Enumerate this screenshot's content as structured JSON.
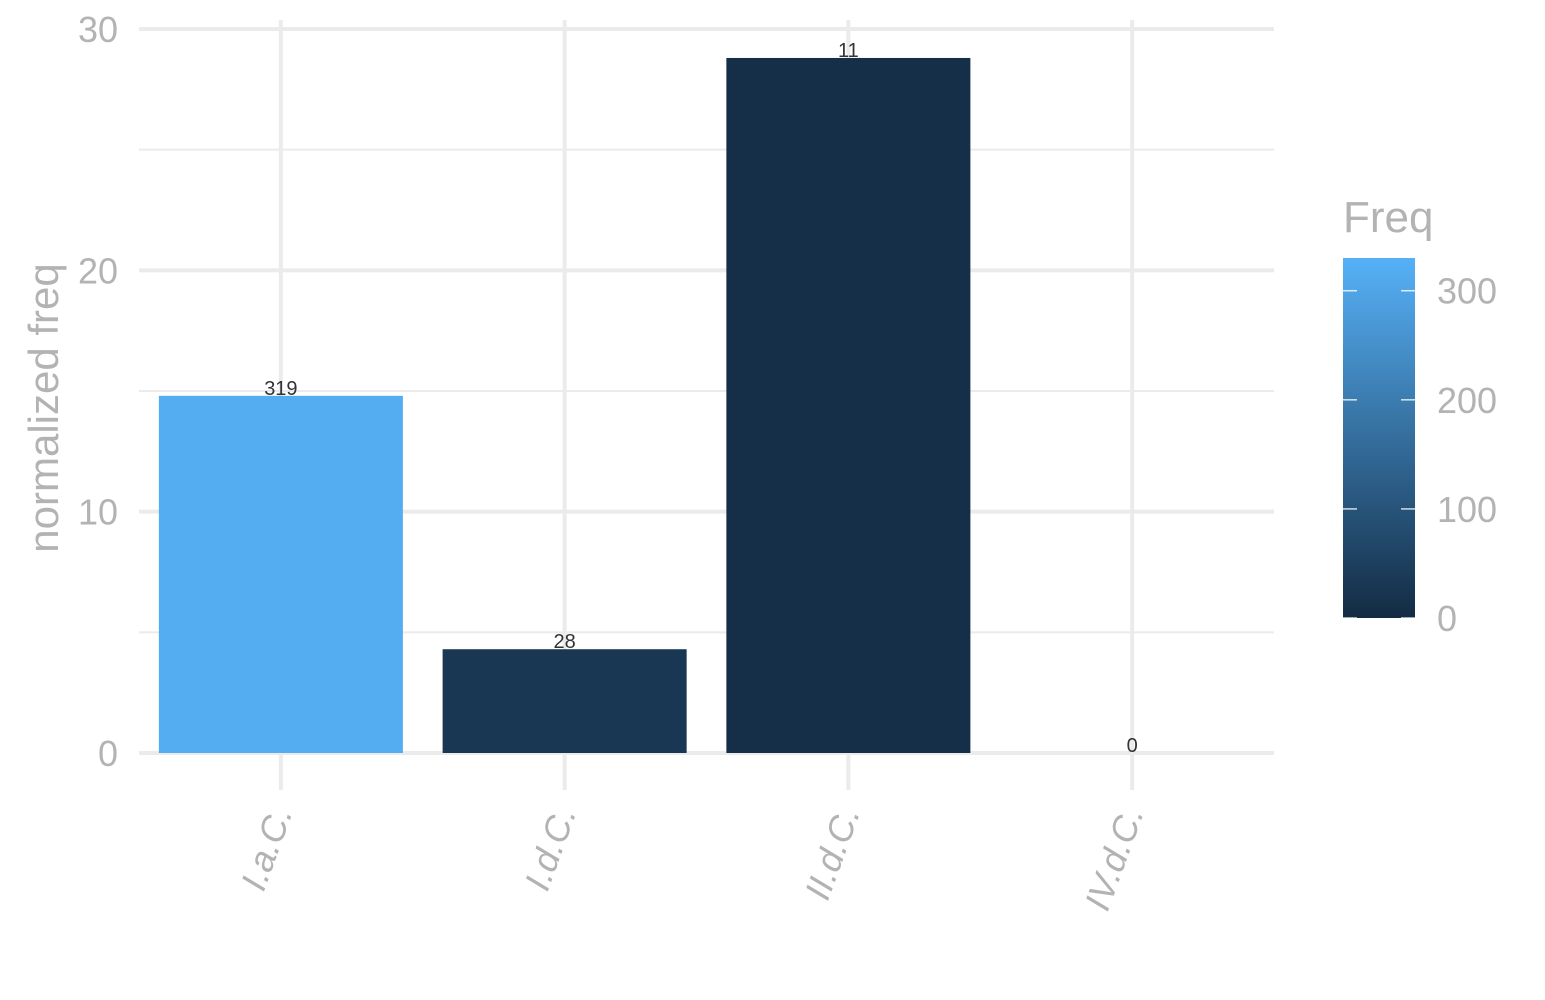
{
  "chart_data": {
    "type": "bar",
    "categories": [
      "I.a.C.",
      "I.d.C.",
      "II.d.C.",
      "IV.d.C."
    ],
    "values": [
      14.8,
      4.3,
      28.8,
      0
    ],
    "freq": [
      319,
      28,
      11,
      0
    ],
    "data_labels": [
      "319",
      "28",
      "11",
      "0"
    ],
    "ylabel": "normalized freq",
    "xlabel": "",
    "ylim": [
      0,
      30
    ],
    "yticks": [
      0,
      10,
      20,
      30
    ],
    "ytick_labels": [
      "0",
      "10",
      "20",
      "30"
    ],
    "grid": true,
    "x_tick_rotation": -70,
    "legend": {
      "title": "Freq",
      "placement": "right",
      "type": "colorbar",
      "range": [
        0,
        330
      ],
      "ticks": [
        0,
        100,
        200,
        300
      ],
      "tick_labels": [
        "0",
        "100",
        "200",
        "300"
      ],
      "low_color": "#132B43",
      "high_color": "#56B1F7"
    }
  }
}
